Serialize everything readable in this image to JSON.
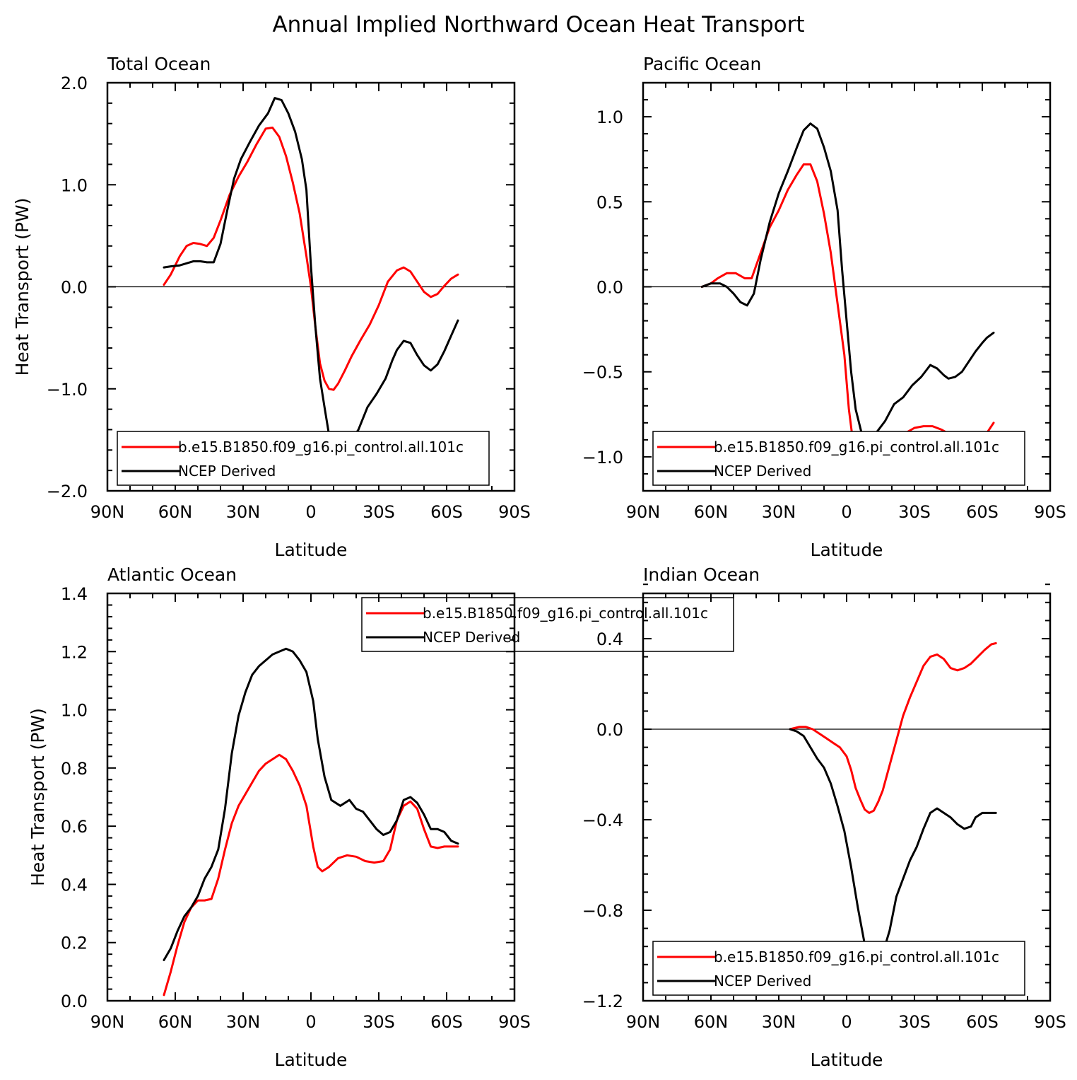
{
  "figure_title": "Annual Implied Northward Ocean Heat Transport",
  "colors": {
    "model": "#ff0000",
    "obs": "#000000",
    "axes": "#000000"
  },
  "chart_data": [
    {
      "type": "line",
      "title": "Total Ocean",
      "xlabel": "Latitude",
      "ylabel": "Heat Transport (PW)",
      "xlim": [
        90,
        -90
      ],
      "ylim": [
        -2.0,
        2.0
      ],
      "x_ticks": [
        90,
        60,
        30,
        0,
        -30,
        -60,
        -90
      ],
      "x_tick_labels": [
        "90N",
        "60N",
        "30N",
        "0",
        "30S",
        "60S",
        "90S"
      ],
      "y_ticks": [
        -2.0,
        -1.0,
        0.0,
        1.0,
        2.0
      ],
      "y_tick_labels": [
        "−2.0",
        "−1.0",
        "0.0",
        "1.0",
        "2.0"
      ],
      "zero_line": true,
      "legend": {
        "placement": "bottom",
        "entries": [
          "b.e15.B1850.f09_g16.pi_control.all.101c",
          "NCEP Derived"
        ]
      },
      "series": [
        {
          "name": "b.e15.B1850.f09_g16.pi_control.all.101c",
          "color": "#ff0000",
          "x": [
            65,
            62,
            58,
            55,
            52,
            49,
            46,
            43,
            40,
            36,
            32,
            28,
            24,
            20,
            17,
            14,
            11,
            8,
            5,
            2,
            0,
            -2,
            -4,
            -6,
            -8,
            -10,
            -12,
            -15,
            -18,
            -22,
            -26,
            -30,
            -34,
            -38,
            -41,
            -44,
            -47,
            -50,
            -53,
            -56,
            -59,
            -62,
            -65
          ],
          "y": [
            0.02,
            0.12,
            0.3,
            0.4,
            0.43,
            0.42,
            0.4,
            0.48,
            0.65,
            0.9,
            1.08,
            1.23,
            1.4,
            1.55,
            1.56,
            1.47,
            1.28,
            1.02,
            0.72,
            0.3,
            0.0,
            -0.4,
            -0.75,
            -0.92,
            -1.0,
            -1.01,
            -0.95,
            -0.82,
            -0.68,
            -0.52,
            -0.37,
            -0.18,
            0.05,
            0.16,
            0.19,
            0.15,
            0.05,
            -0.05,
            -0.1,
            -0.07,
            0.01,
            0.08,
            0.12
          ]
        },
        {
          "name": "NCEP Derived",
          "color": "#000000",
          "x": [
            65,
            62,
            58,
            55,
            52,
            49,
            46,
            43,
            40,
            37,
            34,
            31,
            27,
            23,
            19,
            16,
            13,
            10,
            7,
            4,
            2,
            0,
            -2,
            -4,
            -6,
            -8,
            -10,
            -12,
            -15,
            -18,
            -21,
            -25,
            -29,
            -33,
            -36,
            -38,
            -41,
            -44,
            -47,
            -50,
            -53,
            -56,
            -59,
            -62,
            -65
          ],
          "y": [
            0.19,
            0.2,
            0.21,
            0.23,
            0.25,
            0.25,
            0.24,
            0.24,
            0.42,
            0.75,
            1.06,
            1.25,
            1.42,
            1.58,
            1.7,
            1.85,
            1.83,
            1.7,
            1.52,
            1.25,
            0.95,
            0.2,
            -0.4,
            -0.9,
            -1.18,
            -1.45,
            -1.62,
            -1.65,
            -1.6,
            -1.5,
            -1.4,
            -1.18,
            -1.05,
            -0.9,
            -0.72,
            -0.62,
            -0.53,
            -0.55,
            -0.67,
            -0.77,
            -0.82,
            -0.76,
            -0.63,
            -0.48,
            -0.33
          ]
        }
      ]
    },
    {
      "type": "line",
      "title": "Pacific Ocean",
      "xlabel": "Latitude",
      "ylabel": "",
      "xlim": [
        90,
        -90
      ],
      "ylim": [
        -1.2,
        1.2
      ],
      "x_ticks": [
        90,
        60,
        30,
        0,
        -30,
        -60,
        -90
      ],
      "x_tick_labels": [
        "90N",
        "60N",
        "30N",
        "0",
        "30S",
        "60S",
        "90S"
      ],
      "y_ticks": [
        -1.0,
        -0.5,
        0.0,
        0.5,
        1.0
      ],
      "y_tick_labels": [
        "−1.0",
        "−0.5",
        "0.0",
        "0.5",
        "1.0"
      ],
      "zero_line": true,
      "legend": {
        "placement": "bottom",
        "entries": [
          "b.e15.B1850.f09_g16.pi_control.all.101c",
          "NCEP Derived"
        ]
      },
      "series": [
        {
          "name": "b.e15.B1850.f09_g16.pi_control.all.101c",
          "color": "#ff0000",
          "x": [
            64,
            60,
            57,
            53,
            49,
            45,
            42,
            38,
            34,
            30,
            26,
            22,
            19,
            16,
            13,
            10,
            7,
            4,
            1,
            -1,
            -3,
            -5,
            -8,
            -11,
            -14,
            -18,
            -22,
            -26,
            -30,
            -34,
            -38,
            -42,
            -46,
            -50,
            -53,
            -56,
            -59,
            -62,
            -65
          ],
          "y": [
            0.0,
            0.02,
            0.05,
            0.08,
            0.08,
            0.05,
            0.05,
            0.2,
            0.35,
            0.45,
            0.57,
            0.66,
            0.72,
            0.72,
            0.62,
            0.43,
            0.2,
            -0.1,
            -0.4,
            -0.72,
            -0.93,
            -1.05,
            -1.1,
            -1.08,
            -1.05,
            -0.98,
            -0.93,
            -0.86,
            -0.83,
            -0.82,
            -0.82,
            -0.84,
            -0.87,
            -0.9,
            -0.92,
            -0.92,
            -0.9,
            -0.86,
            -0.8
          ]
        },
        {
          "name": "NCEP Derived",
          "color": "#000000",
          "x": [
            64,
            60,
            56,
            53,
            50,
            47,
            44,
            41,
            38,
            34,
            30,
            26,
            22,
            19,
            16,
            13,
            10,
            7,
            4,
            2,
            0,
            -2,
            -4,
            -7,
            -10,
            -13,
            -17,
            -21,
            -25,
            -29,
            -33,
            -37,
            -40,
            -43,
            -45,
            -48,
            -51,
            -54,
            -57,
            -60,
            -62,
            -65
          ],
          "y": [
            0.0,
            0.02,
            0.02,
            0.0,
            -0.04,
            -0.09,
            -0.11,
            -0.04,
            0.16,
            0.38,
            0.55,
            0.68,
            0.82,
            0.92,
            0.96,
            0.93,
            0.82,
            0.68,
            0.45,
            0.1,
            -0.2,
            -0.5,
            -0.72,
            -0.88,
            -0.92,
            -0.86,
            -0.79,
            -0.69,
            -0.65,
            -0.58,
            -0.53,
            -0.46,
            -0.48,
            -0.52,
            -0.54,
            -0.53,
            -0.5,
            -0.44,
            -0.38,
            -0.33,
            -0.3,
            -0.27
          ]
        }
      ]
    },
    {
      "type": "line",
      "title": "Atlantic Ocean",
      "xlabel": "Latitude",
      "ylabel": "Heat Transport (PW)",
      "xlim": [
        90,
        -90
      ],
      "ylim": [
        0.0,
        1.4
      ],
      "x_ticks": [
        90,
        60,
        30,
        0,
        -30,
        -60,
        -90
      ],
      "x_tick_labels": [
        "90N",
        "60N",
        "30N",
        "0",
        "30S",
        "60S",
        "90S"
      ],
      "y_ticks": [
        0.0,
        0.2,
        0.4,
        0.6,
        0.8,
        1.0,
        1.2,
        1.4
      ],
      "y_tick_labels": [
        "0.0",
        "0.2",
        "0.4",
        "0.6",
        "0.8",
        "1.0",
        "1.2",
        "1.4"
      ],
      "zero_line": false,
      "legend": {
        "placement": "top-center",
        "entries": [
          "b.e15.B1850.f09_g16.pi_control.all.101c",
          "NCEP Derived"
        ]
      },
      "series": [
        {
          "name": "b.e15.B1850.f09_g16.pi_control.all.101c",
          "color": "#ff0000",
          "x": [
            65,
            62,
            59,
            56,
            53,
            50,
            47,
            44,
            41,
            38,
            35,
            32,
            29,
            26,
            23,
            20,
            17,
            14,
            11,
            8,
            5,
            2,
            -1,
            -3,
            -5,
            -8,
            -12,
            -16,
            -20,
            -24,
            -28,
            -32,
            -35,
            -38,
            -41,
            -44,
            -47,
            -50,
            -53,
            -56,
            -59,
            -62,
            -65
          ],
          "y": [
            0.02,
            0.1,
            0.19,
            0.27,
            0.32,
            0.345,
            0.345,
            0.35,
            0.42,
            0.52,
            0.61,
            0.67,
            0.71,
            0.75,
            0.79,
            0.815,
            0.83,
            0.845,
            0.83,
            0.79,
            0.74,
            0.67,
            0.53,
            0.46,
            0.445,
            0.46,
            0.49,
            0.5,
            0.495,
            0.48,
            0.475,
            0.48,
            0.52,
            0.62,
            0.67,
            0.685,
            0.66,
            0.59,
            0.53,
            0.525,
            0.53,
            0.53,
            0.53
          ]
        },
        {
          "name": "NCEP Derived",
          "color": "#000000",
          "x": [
            65,
            62,
            59,
            56,
            53,
            50,
            47,
            44,
            41,
            38,
            35,
            32,
            29,
            26,
            23,
            20,
            17,
            14,
            11,
            8,
            5,
            2,
            -1,
            -3,
            -6,
            -9,
            -13,
            -17,
            -20,
            -23,
            -26,
            -29,
            -32,
            -35,
            -38,
            -41,
            -44,
            -47,
            -50,
            -53,
            -56,
            -59,
            -62,
            -65
          ],
          "y": [
            0.14,
            0.18,
            0.24,
            0.29,
            0.32,
            0.36,
            0.42,
            0.46,
            0.52,
            0.66,
            0.85,
            0.98,
            1.06,
            1.12,
            1.15,
            1.17,
            1.19,
            1.2,
            1.21,
            1.2,
            1.17,
            1.13,
            1.03,
            0.9,
            0.77,
            0.69,
            0.67,
            0.69,
            0.66,
            0.65,
            0.62,
            0.59,
            0.57,
            0.58,
            0.62,
            0.69,
            0.7,
            0.68,
            0.64,
            0.59,
            0.59,
            0.58,
            0.55,
            0.54
          ]
        }
      ]
    },
    {
      "type": "line",
      "title": "Indian Ocean",
      "xlabel": "Latitude",
      "ylabel": "",
      "xlim": [
        90,
        -90
      ],
      "ylim": [
        -1.2,
        0.6
      ],
      "x_ticks": [
        90,
        60,
        30,
        0,
        -30,
        -60,
        -90
      ],
      "x_tick_labels": [
        "90N",
        "60N",
        "30N",
        "0",
        "30S",
        "60S",
        "90S"
      ],
      "y_ticks": [
        -1.2,
        -0.8,
        -0.4,
        0.0,
        0.4
      ],
      "y_tick_labels": [
        "−1.2",
        "−0.8",
        "−0.4",
        "0.0",
        "0.4"
      ],
      "zero_line": true,
      "legend": {
        "placement": "bottom",
        "entries": [
          "b.e15.B1850.f09_g16.pi_control.all.101c",
          "NCEP Derived"
        ]
      },
      "series": [
        {
          "name": "b.e15.B1850.f09_g16.pi_control.all.101c",
          "color": "#ff0000",
          "x": [
            25,
            21,
            18,
            15,
            12,
            9,
            6,
            3,
            0,
            -2,
            -4,
            -6,
            -8,
            -10,
            -12,
            -14,
            -16,
            -19,
            -22,
            -25,
            -28,
            -31,
            -34,
            -37,
            -40,
            -43,
            -46,
            -49,
            -52,
            -55,
            -58,
            -61,
            -64,
            -66
          ],
          "y": [
            0.0,
            0.01,
            0.01,
            0.0,
            -0.02,
            -0.04,
            -0.06,
            -0.08,
            -0.12,
            -0.18,
            -0.26,
            -0.31,
            -0.355,
            -0.37,
            -0.36,
            -0.32,
            -0.27,
            -0.16,
            -0.05,
            0.06,
            0.14,
            0.21,
            0.28,
            0.32,
            0.33,
            0.31,
            0.27,
            0.26,
            0.27,
            0.29,
            0.32,
            0.35,
            0.375,
            0.38
          ]
        },
        {
          "name": "NCEP Derived",
          "color": "#000000",
          "x": [
            25,
            22,
            19,
            16,
            13,
            10,
            7,
            4,
            1,
            -2,
            -5,
            -8,
            -10,
            -12,
            -14,
            -16,
            -19,
            -22,
            -25,
            -28,
            -31,
            -34,
            -37,
            -40,
            -43,
            -46,
            -49,
            -52,
            -55,
            -57,
            -60,
            -63,
            -66
          ],
          "y": [
            0.0,
            -0.01,
            -0.03,
            -0.08,
            -0.13,
            -0.17,
            -0.24,
            -0.34,
            -0.45,
            -0.61,
            -0.79,
            -0.95,
            -1.02,
            -1.05,
            -1.03,
            -0.99,
            -0.89,
            -0.74,
            -0.66,
            -0.58,
            -0.52,
            -0.44,
            -0.37,
            -0.35,
            -0.37,
            -0.39,
            -0.42,
            -0.44,
            -0.43,
            -0.39,
            -0.37,
            -0.37,
            -0.37
          ]
        }
      ]
    }
  ]
}
